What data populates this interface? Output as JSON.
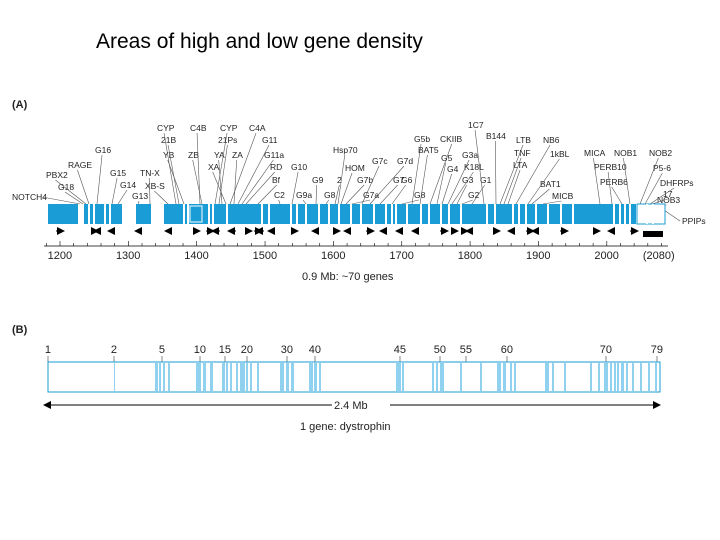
{
  "title": "Areas of high and low gene density",
  "colors": {
    "gene_fill": "#1a9dd6",
    "gene_light": "#8fd1ee",
    "stroke": "#1a9dd6",
    "text": "#222222",
    "black": "#000000"
  },
  "panel_a": {
    "label": "(A)",
    "gene_labels": [
      "NOTCH4",
      "G18",
      "PBX2",
      "RAGE",
      "G16",
      "G15",
      "G14",
      "G13",
      "TN-X",
      "XB-S",
      "CYP",
      "21B",
      "YB",
      "C4B",
      "ZB",
      "CYP",
      "21Ps",
      "YA",
      "XA",
      "C4A",
      "ZA",
      "G11",
      "G11a",
      "RD",
      "Bf",
      "C2",
      "G10",
      "G9a",
      "G9",
      "G8",
      "2",
      "Hsp70",
      "HOM",
      "G7b",
      "G7a",
      "G7c",
      "G7d",
      "G7",
      "G6",
      "G8",
      "G5b",
      "BAT5",
      "CKIIB",
      "G5",
      "G4",
      "G3a",
      "K18L",
      "G3",
      "G2",
      "G1",
      "1C7",
      "B144",
      "LTB",
      "TNF",
      "LTA",
      "NB6",
      "1kBL",
      "BAT1",
      "MICB",
      "MICA",
      "PERB10",
      "PERB6",
      "NOB1",
      "NOB2",
      "P5-6",
      "DHFRPs",
      "17",
      "NOB3",
      "PPIPs"
    ],
    "axis_ticks": [
      "1200",
      "1300",
      "1400",
      "1500",
      "1600",
      "1700",
      "1800",
      "1900",
      "2000",
      "(2080)"
    ],
    "axis_values": [
      1200,
      1300,
      1400,
      1500,
      1600,
      1700,
      1800,
      1900,
      2000,
      2080
    ],
    "caption": "0.9 Mb: ~70 genes"
  },
  "panel_b": {
    "label": "(B)",
    "tick_labels": [
      "1",
      "2",
      "5",
      "10",
      "15",
      "20",
      "30",
      "40",
      "45",
      "50",
      "55",
      "60",
      "70",
      "79"
    ],
    "scale_label": "2.4 Mb",
    "caption": "1 gene: dystrophin"
  }
}
